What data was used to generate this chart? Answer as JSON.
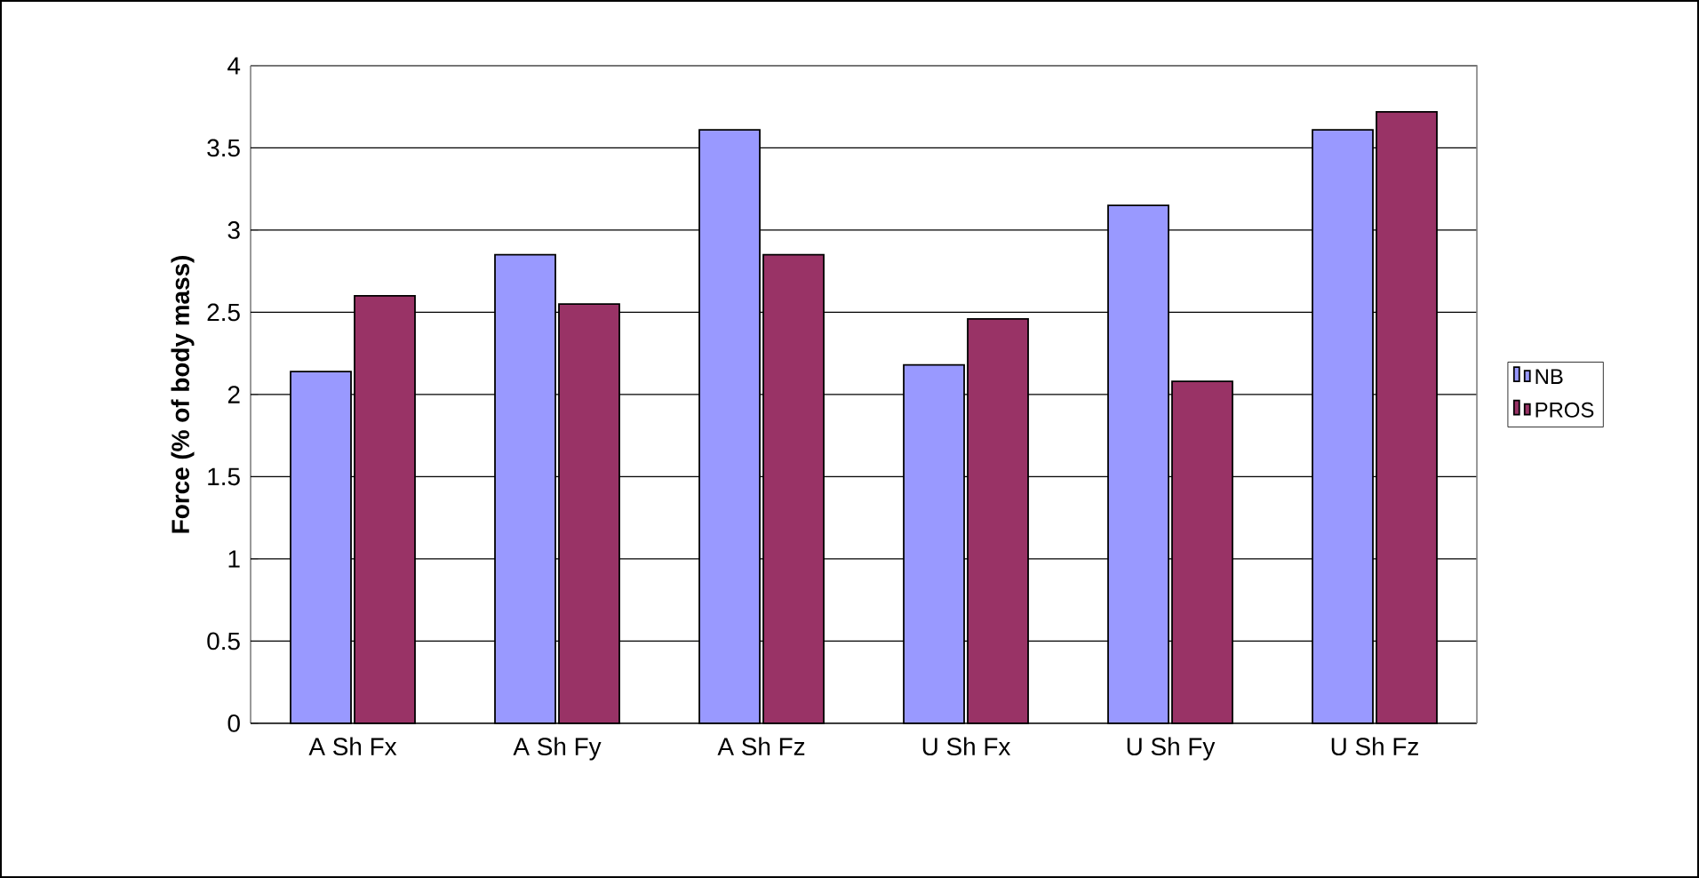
{
  "chart_data": {
    "type": "bar",
    "ylabel": "Force (% of body mass)",
    "categories": [
      "A Sh Fx",
      "A Sh Fy",
      "A Sh Fz",
      "U Sh Fx",
      "U Sh Fy",
      "U Sh Fz"
    ],
    "series": [
      {
        "name": "NB",
        "color": "#9999ff",
        "values": [
          2.14,
          2.85,
          3.61,
          2.18,
          3.15,
          3.61
        ]
      },
      {
        "name": "PROS",
        "color": "#993366",
        "values": [
          2.6,
          2.55,
          2.85,
          2.46,
          2.08,
          3.72
        ]
      }
    ],
    "ylim": [
      0,
      4
    ],
    "yticks": [
      0,
      0.5,
      1,
      1.5,
      2,
      2.5,
      3,
      3.5,
      4
    ],
    "grid": "y",
    "legend": "right"
  }
}
